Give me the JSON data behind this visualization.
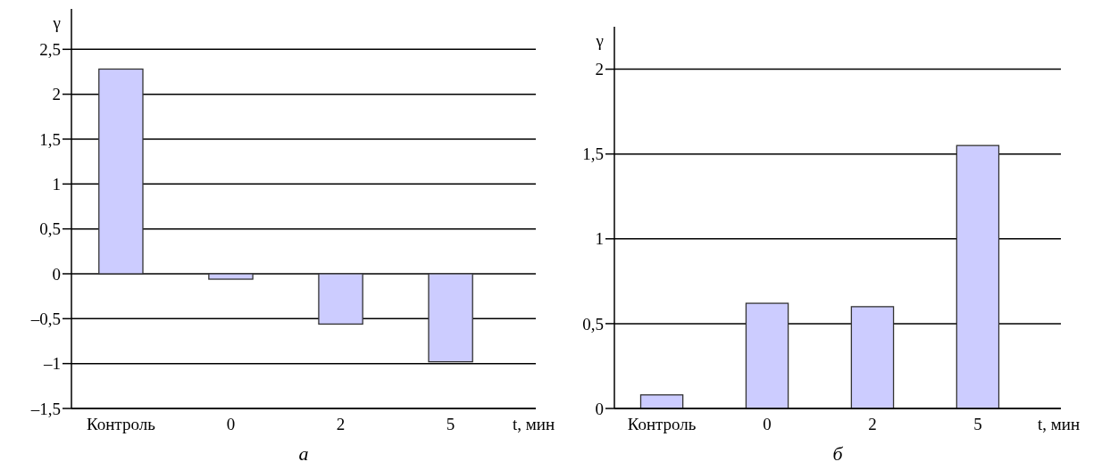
{
  "chart_data": [
    {
      "type": "bar",
      "title": "а",
      "ylabel": "γ",
      "xlabel": "t, мин",
      "categories": [
        "Контроль",
        "0",
        "2",
        "5"
      ],
      "values": [
        2.28,
        -0.06,
        -0.56,
        -0.98
      ],
      "color": "#ccccff",
      "ylim": [
        -1.5,
        2.95
      ],
      "yticks": [
        {
          "value": -1.5,
          "label": "–1,5"
        },
        {
          "value": -1,
          "label": "–1"
        },
        {
          "value": -0.5,
          "label": "–0,5"
        },
        0,
        {
          "value": 0.5,
          "label": "0,5"
        },
        1,
        {
          "value": 1.5,
          "label": "1,5"
        },
        2,
        {
          "value": 2.5,
          "label": "2,5"
        }
      ],
      "grid": "y"
    },
    {
      "type": "bar",
      "title": "б",
      "ylabel": "γ",
      "xlabel": "t, мин",
      "categories": [
        "Контроль",
        "0",
        "2",
        "5"
      ],
      "values": [
        0.08,
        0.62,
        0.6,
        1.55
      ],
      "color": "#ccccff",
      "ylim": [
        0,
        2.25
      ],
      "yticks": [
        0,
        {
          "value": 0.5,
          "label": "0,5"
        },
        1,
        {
          "value": 1.5,
          "label": "1,5"
        },
        2
      ],
      "grid": "y"
    }
  ]
}
